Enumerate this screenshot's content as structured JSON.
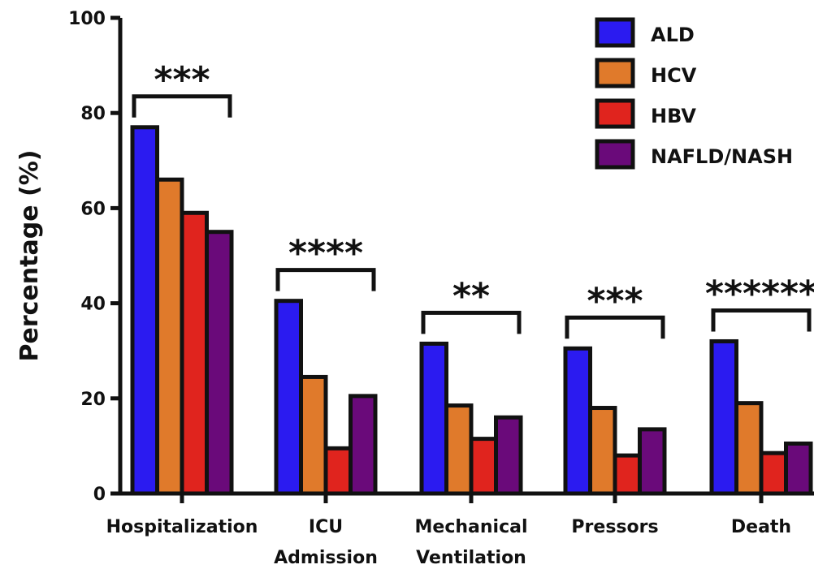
{
  "chart_data": {
    "type": "bar",
    "title": "",
    "xlabel": "",
    "ylabel": "Percentage (%)",
    "ylim": [
      0,
      100
    ],
    "yticks": [
      0,
      20,
      40,
      60,
      80,
      100
    ],
    "grid": false,
    "legend_position": "top-right",
    "categories": [
      {
        "lines": [
          "Hospitalization"
        ]
      },
      {
        "lines": [
          "ICU",
          "Admission"
        ]
      },
      {
        "lines": [
          "Mechanical",
          "Ventilation"
        ]
      },
      {
        "lines": [
          "Pressors"
        ]
      },
      {
        "lines": [
          "Death"
        ]
      }
    ],
    "series": [
      {
        "name": "ALD",
        "color": "#2B1BF0",
        "values": [
          77,
          40.5,
          31.5,
          30.5,
          32
        ]
      },
      {
        "name": "HCV",
        "color": "#E07A2B",
        "values": [
          66,
          24.5,
          18.5,
          18,
          19
        ]
      },
      {
        "name": "HBV",
        "color": "#E0241E",
        "values": [
          59,
          9.5,
          11.5,
          8,
          8.5
        ]
      },
      {
        "name": "NAFLD/NASH",
        "color": "#6A0A7A",
        "values": [
          55,
          20.5,
          16,
          13.5,
          10.5
        ]
      }
    ],
    "significance": [
      "***",
      "****",
      "**",
      "***",
      "******"
    ]
  }
}
